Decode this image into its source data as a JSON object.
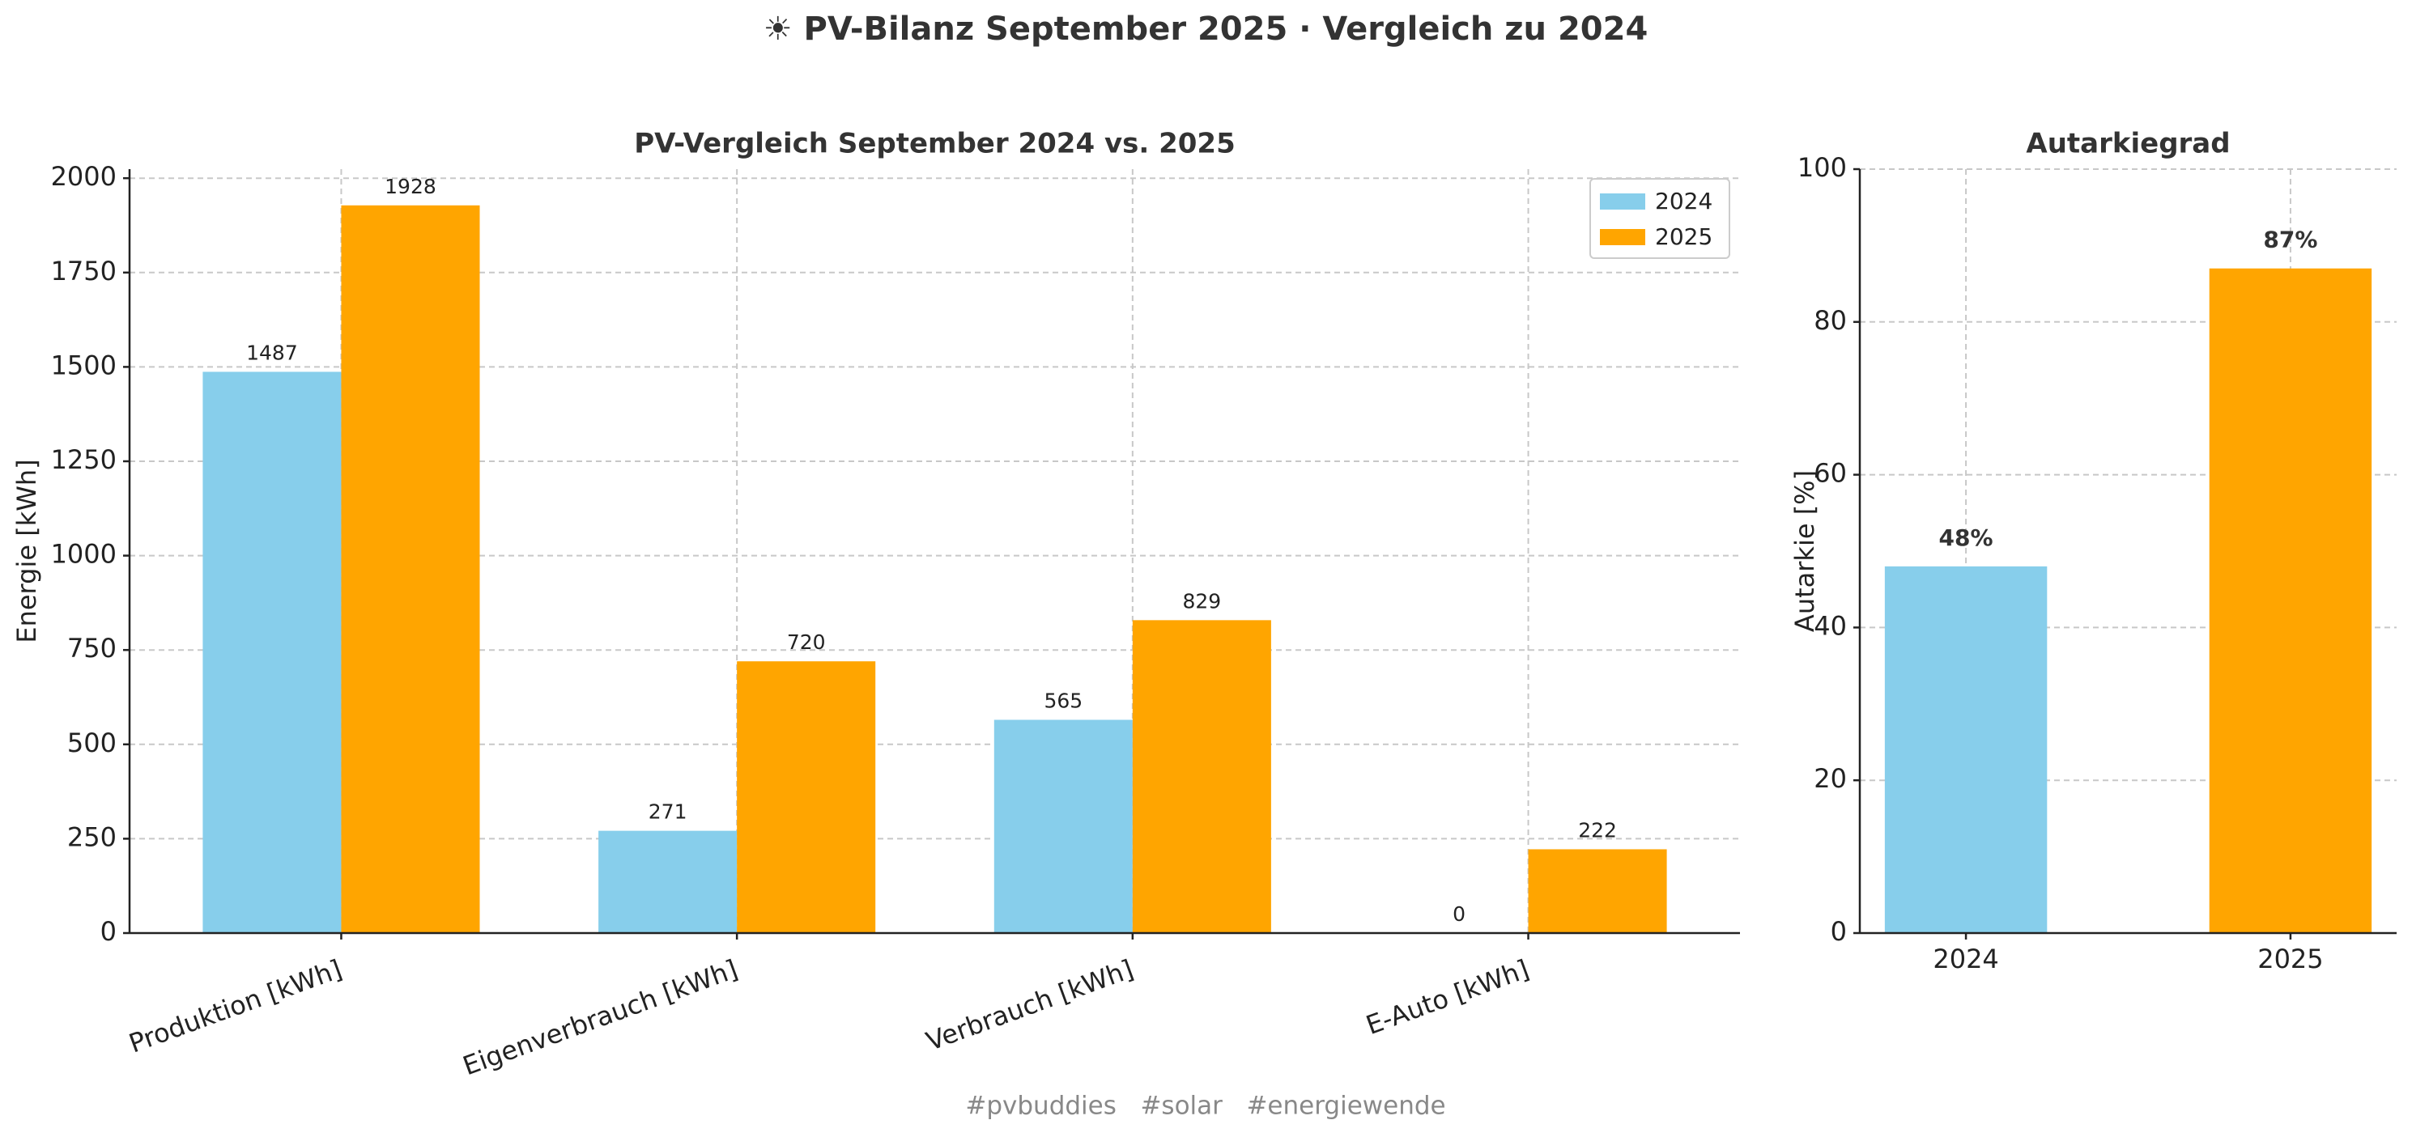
{
  "title": "☀ PV-Bilanz September 2025 · Vergleich zu 2024",
  "footer": "#pvbuddies   #solar   #energiewende",
  "chart_data": [
    {
      "type": "grouped_bar",
      "title": "PV-Vergleich September 2024 vs. 2025",
      "ylabel": "Energie [kWh]",
      "categories": [
        "Produktion [kWh]",
        "Eigenverbrauch [kWh]",
        "Verbrauch [kWh]",
        "E-Auto [kWh]"
      ],
      "series": [
        {
          "name": "2024",
          "color": "#87ceeb",
          "values": [
            1487,
            271,
            565,
            0
          ]
        },
        {
          "name": "2025",
          "color": "#ffa500",
          "values": [
            1928,
            720,
            829,
            222
          ]
        }
      ],
      "ylim": [
        0,
        2024
      ],
      "yticks": [
        0,
        250,
        500,
        750,
        1000,
        1250,
        1500,
        1750,
        2000
      ],
      "grid": true,
      "legend": "upper right"
    },
    {
      "type": "bar",
      "title": "Autarkiegrad",
      "ylabel": "Autarkie [%]",
      "categories": [
        "2024",
        "2025"
      ],
      "values": [
        48,
        87
      ],
      "value_labels": [
        "48%",
        "87%"
      ],
      "colors": [
        "#87ceeb",
        "#ffa500"
      ],
      "ylim": [
        0,
        100
      ],
      "yticks": [
        0,
        20,
        40,
        60,
        80,
        100
      ],
      "grid": true
    }
  ]
}
